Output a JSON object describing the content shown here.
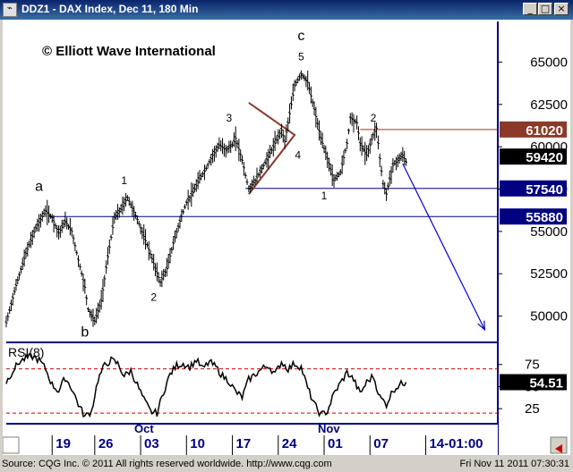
{
  "window": {
    "title": "DDZ1 - DAX Index, Dec 11, 180 Min",
    "icon": "chart-icon",
    "buttons": {
      "minimize": "_",
      "maximize": "□",
      "close": "×"
    }
  },
  "status": {
    "left": "Source: CQG Inc. © 2011 All rights reserved worldwide. http://www.cqg.com",
    "right": "Fri Nov 11 2011 07:30:31"
  },
  "chart_data": {
    "type": "bar",
    "instrument": "DDZ1",
    "watermark": "© Elliott Wave International",
    "price_ticks": [
      65000,
      62500,
      60000,
      57500,
      55000,
      52500,
      50000
    ],
    "price_ylim": [
      48500,
      67400
    ],
    "date_ticks": [
      "19",
      "26",
      "03",
      "10",
      "17",
      "24",
      "01",
      "07",
      "14-01:00"
    ],
    "month_labels": [
      "Oct",
      "Nov"
    ],
    "price_path": [
      [
        0,
        49600
      ],
      [
        3,
        51800
      ],
      [
        6,
        53700
      ],
      [
        9,
        55200
      ],
      [
        12,
        56200
      ],
      [
        14,
        55800
      ],
      [
        16,
        54900
      ],
      [
        18,
        55600
      ],
      [
        20,
        55000
      ],
      [
        22,
        53300
      ],
      [
        24,
        51700
      ],
      [
        25,
        50400
      ],
      [
        27,
        49700
      ],
      [
        29,
        50900
      ],
      [
        31,
        53500
      ],
      [
        33,
        55800
      ],
      [
        35,
        56300
      ],
      [
        37,
        57000
      ],
      [
        40,
        55700
      ],
      [
        43,
        54200
      ],
      [
        45,
        53100
      ],
      [
        47,
        52000
      ],
      [
        49,
        52800
      ],
      [
        51,
        54300
      ],
      [
        53,
        55600
      ],
      [
        55,
        56700
      ],
      [
        57,
        57300
      ],
      [
        59,
        58100
      ],
      [
        61,
        58700
      ],
      [
        63,
        59500
      ],
      [
        65,
        60100
      ],
      [
        67,
        59800
      ],
      [
        69,
        60100
      ],
      [
        70,
        60500
      ],
      [
        72,
        59200
      ],
      [
        73,
        58300
      ],
      [
        74,
        57500
      ],
      [
        76,
        58000
      ],
      [
        78,
        58700
      ],
      [
        80,
        59400
      ],
      [
        82,
        60200
      ],
      [
        84,
        61000
      ],
      [
        85,
        60300
      ],
      [
        87,
        62500
      ],
      [
        88,
        63600
      ],
      [
        90,
        64300
      ],
      [
        92,
        63800
      ],
      [
        94,
        62200
      ],
      [
        96,
        60500
      ],
      [
        98,
        59300
      ],
      [
        100,
        58000
      ],
      [
        102,
        58500
      ],
      [
        104,
        60200
      ],
      [
        105,
        61700
      ],
      [
        107,
        61400
      ],
      [
        108,
        60200
      ],
      [
        110,
        59500
      ],
      [
        112,
        60700
      ],
      [
        113,
        61100
      ],
      [
        114,
        59300
      ],
      [
        115,
        57800
      ],
      [
        116,
        57200
      ],
      [
        117,
        58100
      ],
      [
        118,
        58900
      ],
      [
        120,
        59300
      ],
      [
        121,
        59500
      ],
      [
        122,
        59100
      ]
    ],
    "horizontal_levels": [
      {
        "value": 61020,
        "label": "61020",
        "color": "#8b3a2a"
      },
      {
        "value": 57540,
        "label": "57540",
        "color": "#000080"
      },
      {
        "value": 55880,
        "label": "55880",
        "color": "#000080"
      }
    ],
    "last_price": {
      "value": 59420,
      "label": "59420"
    },
    "wave_labels": [
      {
        "text": "a",
        "x": 10,
        "y": 57400
      },
      {
        "text": "b",
        "x": 24,
        "y": 48800
      },
      {
        "text": "1",
        "x": 36,
        "y": 57800
      },
      {
        "text": "2",
        "x": 45,
        "y": 50900
      },
      {
        "text": "3",
        "x": 68,
        "y": 61500
      },
      {
        "text": "4",
        "x": 89,
        "y": 59300
      },
      {
        "text": "5",
        "x": 90,
        "y": 65100
      },
      {
        "text": "c",
        "x": 90,
        "y": 66300
      },
      {
        "text": "1",
        "x": 97,
        "y": 56900
      },
      {
        "text": "2",
        "x": 112,
        "y": 61500
      }
    ],
    "triangle": [
      [
        74,
        62600
      ],
      [
        88,
        60700
      ],
      [
        74,
        57200
      ]
    ],
    "projection": {
      "from": [
        121,
        59000
      ],
      "to": [
        146,
        49200
      ]
    },
    "rsi": {
      "label": "RSI(8)",
      "last_label": "54.51",
      "ticks": [
        75,
        50,
        25
      ],
      "ylim": [
        10,
        98
      ],
      "overbought": 70,
      "oversold": 20,
      "values": [
        [
          0,
          55
        ],
        [
          2,
          68
        ],
        [
          4,
          78
        ],
        [
          6,
          82
        ],
        [
          8,
          84
        ],
        [
          10,
          80
        ],
        [
          12,
          70
        ],
        [
          14,
          52
        ],
        [
          16,
          45
        ],
        [
          18,
          60
        ],
        [
          20,
          48
        ],
        [
          22,
          30
        ],
        [
          24,
          16
        ],
        [
          26,
          22
        ],
        [
          28,
          58
        ],
        [
          30,
          74
        ],
        [
          32,
          80
        ],
        [
          34,
          76
        ],
        [
          36,
          62
        ],
        [
          38,
          68
        ],
        [
          40,
          52
        ],
        [
          42,
          35
        ],
        [
          44,
          22
        ],
        [
          46,
          20
        ],
        [
          48,
          44
        ],
        [
          50,
          64
        ],
        [
          52,
          74
        ],
        [
          54,
          76
        ],
        [
          56,
          72
        ],
        [
          58,
          80
        ],
        [
          60,
          70
        ],
        [
          62,
          78
        ],
        [
          64,
          72
        ],
        [
          66,
          62
        ],
        [
          68,
          56
        ],
        [
          70,
          44
        ],
        [
          72,
          38
        ],
        [
          74,
          58
        ],
        [
          76,
          64
        ],
        [
          78,
          70
        ],
        [
          80,
          74
        ],
        [
          82,
          64
        ],
        [
          84,
          78
        ],
        [
          86,
          70
        ],
        [
          88,
          76
        ],
        [
          90,
          72
        ],
        [
          92,
          48
        ],
        [
          94,
          30
        ],
        [
          96,
          18
        ],
        [
          98,
          22
        ],
        [
          100,
          42
        ],
        [
          102,
          54
        ],
        [
          104,
          66
        ],
        [
          106,
          58
        ],
        [
          108,
          42
        ],
        [
          110,
          55
        ],
        [
          112,
          62
        ],
        [
          114,
          38
        ],
        [
          116,
          30
        ],
        [
          118,
          46
        ],
        [
          120,
          52
        ],
        [
          122,
          55
        ]
      ]
    }
  }
}
